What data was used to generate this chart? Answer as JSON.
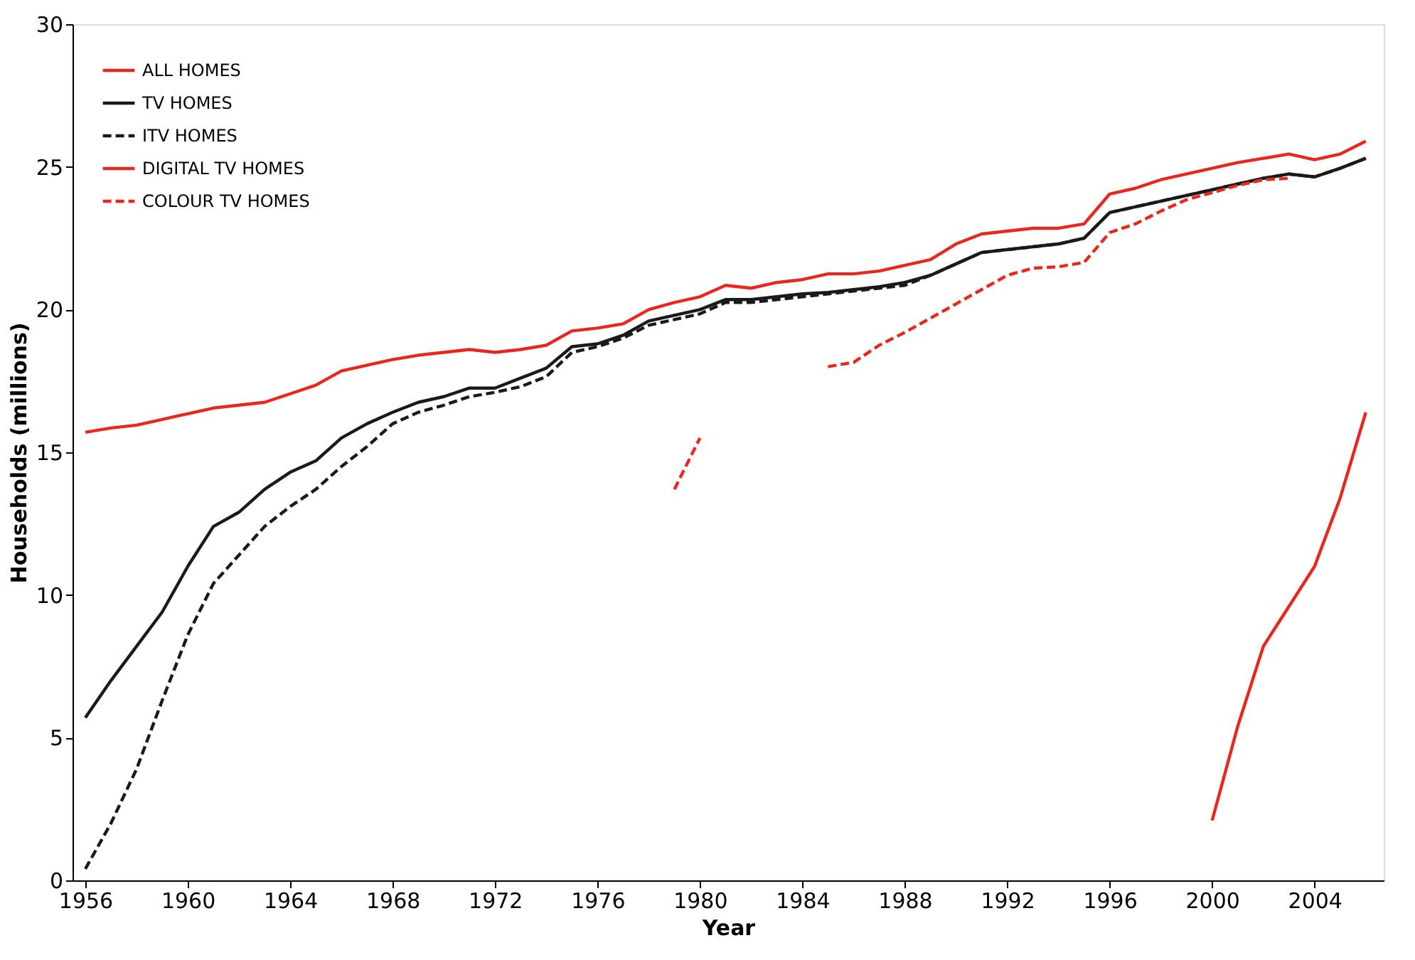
{
  "chart_data": {
    "type": "line",
    "xlabel": "Year",
    "ylabel": "Households (millions)",
    "x": [
      1956,
      1957,
      1958,
      1959,
      1960,
      1961,
      1962,
      1963,
      1964,
      1965,
      1966,
      1967,
      1968,
      1969,
      1970,
      1971,
      1972,
      1973,
      1974,
      1975,
      1976,
      1977,
      1978,
      1979,
      1980,
      1981,
      1982,
      1983,
      1984,
      1985,
      1986,
      1987,
      1988,
      1989,
      1990,
      1991,
      1992,
      1993,
      1994,
      1995,
      1996,
      1997,
      1998,
      1999,
      2000,
      2001,
      2002,
      2003,
      2004,
      2005,
      2006
    ],
    "xlim": [
      1955.5,
      2006.7
    ],
    "xticks": [
      1956,
      1960,
      1964,
      1968,
      1972,
      1976,
      1980,
      1984,
      1988,
      1992,
      1996,
      2000,
      2004
    ],
    "ylim": [
      0,
      30
    ],
    "yticks": [
      0,
      5,
      10,
      15,
      20,
      25,
      30
    ],
    "grid": false,
    "legend": "top left",
    "series": [
      {
        "name": "ALL HOMES",
        "color": "#e8281e",
        "line_style": "solid",
        "values": [
          15.7,
          15.85,
          15.95,
          16.15,
          16.35,
          16.55,
          16.65,
          16.75,
          17.05,
          17.35,
          17.85,
          18.05,
          18.25,
          18.4,
          18.5,
          18.6,
          18.5,
          18.6,
          18.75,
          19.25,
          19.35,
          19.5,
          20.0,
          20.25,
          20.45,
          20.85,
          20.75,
          20.95,
          21.05,
          21.25,
          21.25,
          21.35,
          21.55,
          21.75,
          22.3,
          22.65,
          22.75,
          22.85,
          22.85,
          23.0,
          24.05,
          24.25,
          24.55,
          24.75,
          24.95,
          25.15,
          25.3,
          25.45,
          25.25,
          25.45,
          25.9
        ]
      },
      {
        "name": "TV HOMES",
        "color": "#1a1a1a",
        "line_style": "solid",
        "values": [
          5.7,
          7.0,
          8.2,
          9.4,
          11.0,
          12.4,
          12.9,
          13.7,
          14.3,
          14.7,
          15.5,
          16.0,
          16.4,
          16.75,
          16.95,
          17.25,
          17.25,
          17.6,
          17.95,
          18.7,
          18.8,
          19.1,
          19.6,
          19.8,
          20.0,
          20.35,
          20.35,
          20.45,
          20.55,
          20.6,
          20.7,
          20.8,
          20.95,
          21.2,
          21.6,
          22.0,
          22.1,
          22.2,
          22.3,
          22.5,
          23.4,
          23.6,
          23.8,
          24.0,
          24.2,
          24.4,
          24.6,
          24.75,
          24.65,
          24.95,
          25.3
        ]
      },
      {
        "name": "ITV HOMES",
        "color": "#1a1a1a",
        "line_style": "dashed",
        "values": [
          0.4,
          2.0,
          3.9,
          6.3,
          8.6,
          10.4,
          11.4,
          12.4,
          13.1,
          13.7,
          14.5,
          15.2,
          16.0,
          16.4,
          16.65,
          16.95,
          17.1,
          17.3,
          17.65,
          18.5,
          18.7,
          19.0,
          19.45,
          19.65,
          19.85,
          20.25,
          20.25,
          20.35,
          20.45,
          20.55,
          20.65,
          20.75,
          20.85,
          21.2,
          21.6,
          22.0,
          22.1,
          22.2,
          22.3,
          22.5,
          23.4,
          23.6,
          23.8,
          24.0,
          24.2,
          24.4,
          24.6,
          24.75,
          24.65,
          24.95,
          25.3
        ]
      },
      {
        "name": "DIGITAL TV HOMES",
        "color": "#e8281e",
        "line_style": "solid",
        "values": [
          null,
          null,
          null,
          null,
          null,
          null,
          null,
          null,
          null,
          null,
          null,
          null,
          null,
          null,
          null,
          null,
          null,
          null,
          null,
          null,
          null,
          null,
          null,
          null,
          null,
          null,
          null,
          null,
          null,
          null,
          null,
          null,
          null,
          null,
          null,
          null,
          null,
          null,
          null,
          null,
          null,
          null,
          null,
          null,
          2.1,
          5.4,
          8.2,
          9.6,
          11.0,
          13.4,
          16.4
        ]
      },
      {
        "name": "COLOUR TV HOMES",
        "color": "#e8281e",
        "line_style": "dashed",
        "values": [
          null,
          null,
          null,
          null,
          null,
          null,
          null,
          null,
          null,
          null,
          null,
          null,
          null,
          null,
          null,
          null,
          null,
          null,
          null,
          null,
          null,
          null,
          null,
          13.7,
          15.5,
          null,
          null,
          null,
          null,
          18.0,
          18.15,
          18.75,
          19.2,
          19.7,
          20.2,
          20.7,
          21.2,
          21.45,
          21.5,
          21.65,
          22.7,
          23.0,
          23.45,
          23.85,
          24.1,
          24.35,
          24.55,
          24.6,
          null,
          null,
          null
        ]
      }
    ]
  }
}
